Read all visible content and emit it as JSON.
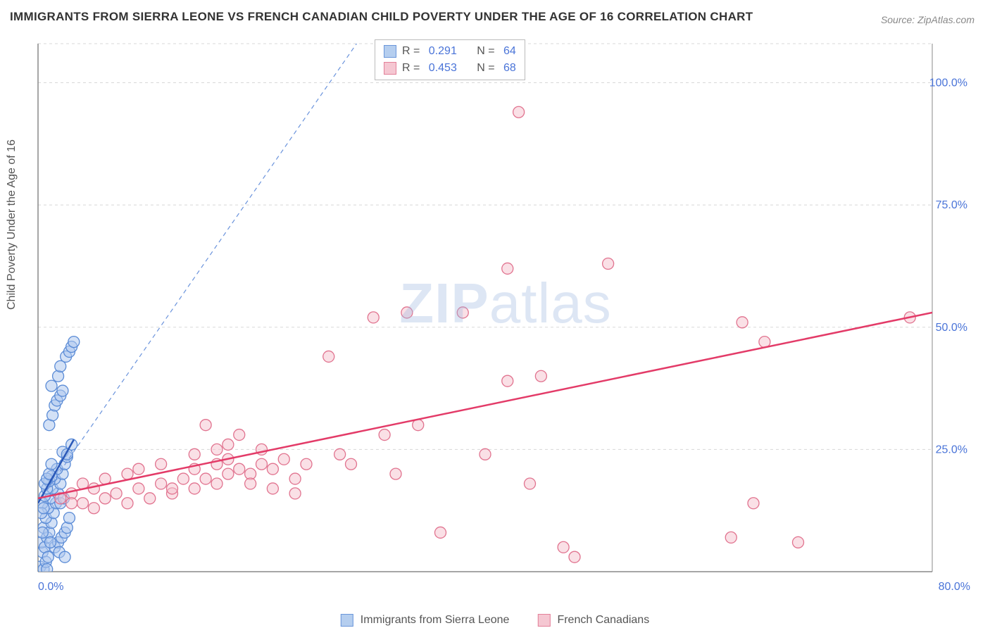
{
  "title": "IMMIGRANTS FROM SIERRA LEONE VS FRENCH CANADIAN CHILD POVERTY UNDER THE AGE OF 16 CORRELATION CHART",
  "source": "Source: ZipAtlas.com",
  "watermark_bold": "ZIP",
  "watermark_light": "atlas",
  "y_axis_label": "Child Poverty Under the Age of 16",
  "chart": {
    "type": "scatter",
    "xlim": [
      0,
      80
    ],
    "ylim": [
      0,
      108
    ],
    "xticks": [
      {
        "v": 0,
        "label": "0.0%"
      },
      {
        "v": 80,
        "label": "80.0%"
      }
    ],
    "yticks": [
      {
        "v": 25,
        "label": "25.0%"
      },
      {
        "v": 50,
        "label": "50.0%"
      },
      {
        "v": 75,
        "label": "75.0%"
      },
      {
        "v": 100,
        "label": "100.0%"
      }
    ],
    "background_color": "#ffffff",
    "grid_color": "#d8d8d8",
    "grid_dash": "4,4",
    "axis_color": "#888888",
    "marker_radius": 8,
    "series": [
      {
        "id": "sierra_leone",
        "label": "Immigrants from Sierra Leone",
        "fill": "#aec9ee",
        "stroke": "#5a8bd6",
        "fill_opacity": 0.55,
        "R": "0.291",
        "N": "64",
        "trend": {
          "solid": {
            "x1": 0,
            "y1": 14,
            "x2": 3.2,
            "y2": 27,
            "color": "#2a58b8",
            "width": 2.5
          },
          "dashed": {
            "x1": 0,
            "y1": 14,
            "x2": 28.5,
            "y2": 108,
            "color": "#6a93dc",
            "width": 1.2,
            "dash": "6,5"
          }
        },
        "points": [
          [
            0.2,
            1
          ],
          [
            0.4,
            4
          ],
          [
            0.3,
            6
          ],
          [
            0.6,
            5
          ],
          [
            0.8,
            7
          ],
          [
            0.5,
            9
          ],
          [
            1.0,
            8
          ],
          [
            1.2,
            10
          ],
          [
            0.7,
            11
          ],
          [
            1.4,
            12
          ],
          [
            0.9,
            13
          ],
          [
            1.6,
            14
          ],
          [
            1.1,
            15
          ],
          [
            1.8,
            16
          ],
          [
            1.3,
            17
          ],
          [
            2.0,
            18
          ],
          [
            1.5,
            19
          ],
          [
            2.2,
            20
          ],
          [
            1.7,
            21
          ],
          [
            2.4,
            22
          ],
          [
            0.4,
            14
          ],
          [
            0.6,
            15.5
          ],
          [
            0.8,
            17
          ],
          [
            1.0,
            18.5
          ],
          [
            1.2,
            19.5
          ],
          [
            2.6,
            23.5
          ],
          [
            2.2,
            24.5
          ],
          [
            0.5,
            0.5
          ],
          [
            0.7,
            2
          ],
          [
            0.9,
            3
          ],
          [
            1.5,
            5
          ],
          [
            1.8,
            6
          ],
          [
            2.1,
            7
          ],
          [
            2.4,
            8
          ],
          [
            2.6,
            9
          ],
          [
            2.8,
            11
          ],
          [
            0.6,
            18
          ],
          [
            0.8,
            19
          ],
          [
            1.0,
            20
          ],
          [
            1.2,
            22
          ],
          [
            2.6,
            24
          ],
          [
            3.0,
            26
          ],
          [
            1.0,
            30
          ],
          [
            1.3,
            32
          ],
          [
            1.5,
            34
          ],
          [
            1.7,
            35
          ],
          [
            2.0,
            36
          ],
          [
            2.2,
            37
          ],
          [
            1.2,
            38
          ],
          [
            1.8,
            40
          ],
          [
            2.0,
            42
          ],
          [
            2.5,
            44
          ],
          [
            2.8,
            45
          ],
          [
            3.0,
            46
          ],
          [
            3.2,
            47
          ],
          [
            0.3,
            12
          ],
          [
            0.5,
            13
          ],
          [
            2.0,
            14
          ],
          [
            2.3,
            15
          ],
          [
            1.1,
            6
          ],
          [
            1.9,
            4
          ],
          [
            2.4,
            3
          ],
          [
            0.4,
            8
          ],
          [
            0.8,
            0.5
          ]
        ]
      },
      {
        "id": "french_canadian",
        "label": "French Canadians",
        "fill": "#f5c2ce",
        "stroke": "#e1738f",
        "fill_opacity": 0.5,
        "R": "0.453",
        "N": "68",
        "trend": {
          "solid": {
            "x1": 0,
            "y1": 15,
            "x2": 80,
            "y2": 53,
            "color": "#e33b68",
            "width": 2.5
          }
        },
        "points": [
          [
            2,
            15
          ],
          [
            3,
            16
          ],
          [
            4,
            14
          ],
          [
            5,
            17
          ],
          [
            6,
            15
          ],
          [
            7,
            16
          ],
          [
            8,
            14
          ],
          [
            9,
            17
          ],
          [
            10,
            15
          ],
          [
            11,
            18
          ],
          [
            12,
            16
          ],
          [
            13,
            19
          ],
          [
            14,
            17
          ],
          [
            15,
            19
          ],
          [
            16,
            18
          ],
          [
            17,
            20
          ],
          [
            18,
            21
          ],
          [
            19,
            20
          ],
          [
            20,
            22
          ],
          [
            21,
            21
          ],
          [
            22,
            23
          ],
          [
            24,
            22
          ],
          [
            14,
            24
          ],
          [
            16,
            25
          ],
          [
            17,
            26
          ],
          [
            18,
            28
          ],
          [
            15,
            30
          ],
          [
            12,
            17
          ],
          [
            23,
            19
          ],
          [
            26,
            44
          ],
          [
            27,
            24
          ],
          [
            30,
            52
          ],
          [
            31,
            28
          ],
          [
            32,
            20
          ],
          [
            33,
            53
          ],
          [
            34,
            30
          ],
          [
            36,
            8
          ],
          [
            38,
            53
          ],
          [
            40,
            24
          ],
          [
            42,
            62
          ],
          [
            42,
            39
          ],
          [
            43,
            94
          ],
          [
            44,
            18
          ],
          [
            45,
            40
          ],
          [
            47,
            5
          ],
          [
            48,
            3
          ],
          [
            51,
            63
          ],
          [
            62,
            7
          ],
          [
            63,
            51
          ],
          [
            64,
            14
          ],
          [
            65,
            47
          ],
          [
            68,
            6
          ],
          [
            78,
            52
          ],
          [
            4,
            18
          ],
          [
            6,
            19
          ],
          [
            8,
            20
          ],
          [
            9,
            21
          ],
          [
            11,
            22
          ],
          [
            3,
            14
          ],
          [
            5,
            13
          ],
          [
            19,
            18
          ],
          [
            21,
            17
          ],
          [
            23,
            16
          ],
          [
            20,
            25
          ],
          [
            16,
            22
          ],
          [
            14,
            21
          ],
          [
            17,
            23
          ],
          [
            28,
            22
          ]
        ]
      }
    ],
    "legend_top": {
      "R_color": "#4a74d8",
      "N_color": "#4a74d8",
      "text_color": "#555"
    }
  }
}
